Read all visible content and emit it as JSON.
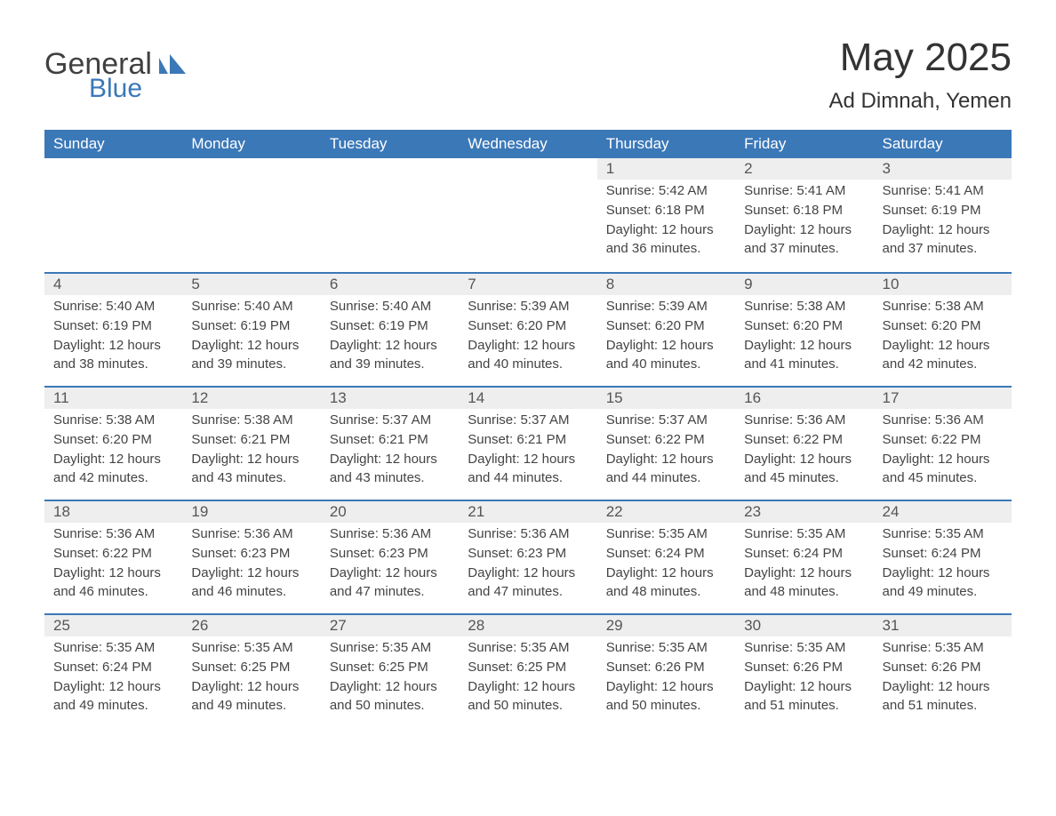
{
  "logo": {
    "general": "General",
    "blue": "Blue"
  },
  "title": "May 2025",
  "location": "Ad Dimnah, Yemen",
  "colors": {
    "header_bg": "#3b78b8",
    "header_text": "#ffffff",
    "daynum_bg": "#eeeeee",
    "border_top": "#3b78b8",
    "body_text": "#444444",
    "title_text": "#333333",
    "logo_gray": "#404040",
    "logo_blue": "#3b78b8",
    "page_bg": "#ffffff"
  },
  "weekdays": [
    "Sunday",
    "Monday",
    "Tuesday",
    "Wednesday",
    "Thursday",
    "Friday",
    "Saturday"
  ],
  "weeks": [
    [
      null,
      null,
      null,
      null,
      {
        "d": "1",
        "sunrise": "5:42 AM",
        "sunset": "6:18 PM",
        "daylight": "12 hours and 36 minutes."
      },
      {
        "d": "2",
        "sunrise": "5:41 AM",
        "sunset": "6:18 PM",
        "daylight": "12 hours and 37 minutes."
      },
      {
        "d": "3",
        "sunrise": "5:41 AM",
        "sunset": "6:19 PM",
        "daylight": "12 hours and 37 minutes."
      }
    ],
    [
      {
        "d": "4",
        "sunrise": "5:40 AM",
        "sunset": "6:19 PM",
        "daylight": "12 hours and 38 minutes."
      },
      {
        "d": "5",
        "sunrise": "5:40 AM",
        "sunset": "6:19 PM",
        "daylight": "12 hours and 39 minutes."
      },
      {
        "d": "6",
        "sunrise": "5:40 AM",
        "sunset": "6:19 PM",
        "daylight": "12 hours and 39 minutes."
      },
      {
        "d": "7",
        "sunrise": "5:39 AM",
        "sunset": "6:20 PM",
        "daylight": "12 hours and 40 minutes."
      },
      {
        "d": "8",
        "sunrise": "5:39 AM",
        "sunset": "6:20 PM",
        "daylight": "12 hours and 40 minutes."
      },
      {
        "d": "9",
        "sunrise": "5:38 AM",
        "sunset": "6:20 PM",
        "daylight": "12 hours and 41 minutes."
      },
      {
        "d": "10",
        "sunrise": "5:38 AM",
        "sunset": "6:20 PM",
        "daylight": "12 hours and 42 minutes."
      }
    ],
    [
      {
        "d": "11",
        "sunrise": "5:38 AM",
        "sunset": "6:20 PM",
        "daylight": "12 hours and 42 minutes."
      },
      {
        "d": "12",
        "sunrise": "5:38 AM",
        "sunset": "6:21 PM",
        "daylight": "12 hours and 43 minutes."
      },
      {
        "d": "13",
        "sunrise": "5:37 AM",
        "sunset": "6:21 PM",
        "daylight": "12 hours and 43 minutes."
      },
      {
        "d": "14",
        "sunrise": "5:37 AM",
        "sunset": "6:21 PM",
        "daylight": "12 hours and 44 minutes."
      },
      {
        "d": "15",
        "sunrise": "5:37 AM",
        "sunset": "6:22 PM",
        "daylight": "12 hours and 44 minutes."
      },
      {
        "d": "16",
        "sunrise": "5:36 AM",
        "sunset": "6:22 PM",
        "daylight": "12 hours and 45 minutes."
      },
      {
        "d": "17",
        "sunrise": "5:36 AM",
        "sunset": "6:22 PM",
        "daylight": "12 hours and 45 minutes."
      }
    ],
    [
      {
        "d": "18",
        "sunrise": "5:36 AM",
        "sunset": "6:22 PM",
        "daylight": "12 hours and 46 minutes."
      },
      {
        "d": "19",
        "sunrise": "5:36 AM",
        "sunset": "6:23 PM",
        "daylight": "12 hours and 46 minutes."
      },
      {
        "d": "20",
        "sunrise": "5:36 AM",
        "sunset": "6:23 PM",
        "daylight": "12 hours and 47 minutes."
      },
      {
        "d": "21",
        "sunrise": "5:36 AM",
        "sunset": "6:23 PM",
        "daylight": "12 hours and 47 minutes."
      },
      {
        "d": "22",
        "sunrise": "5:35 AM",
        "sunset": "6:24 PM",
        "daylight": "12 hours and 48 minutes."
      },
      {
        "d": "23",
        "sunrise": "5:35 AM",
        "sunset": "6:24 PM",
        "daylight": "12 hours and 48 minutes."
      },
      {
        "d": "24",
        "sunrise": "5:35 AM",
        "sunset": "6:24 PM",
        "daylight": "12 hours and 49 minutes."
      }
    ],
    [
      {
        "d": "25",
        "sunrise": "5:35 AM",
        "sunset": "6:24 PM",
        "daylight": "12 hours and 49 minutes."
      },
      {
        "d": "26",
        "sunrise": "5:35 AM",
        "sunset": "6:25 PM",
        "daylight": "12 hours and 49 minutes."
      },
      {
        "d": "27",
        "sunrise": "5:35 AM",
        "sunset": "6:25 PM",
        "daylight": "12 hours and 50 minutes."
      },
      {
        "d": "28",
        "sunrise": "5:35 AM",
        "sunset": "6:25 PM",
        "daylight": "12 hours and 50 minutes."
      },
      {
        "d": "29",
        "sunrise": "5:35 AM",
        "sunset": "6:26 PM",
        "daylight": "12 hours and 50 minutes."
      },
      {
        "d": "30",
        "sunrise": "5:35 AM",
        "sunset": "6:26 PM",
        "daylight": "12 hours and 51 minutes."
      },
      {
        "d": "31",
        "sunrise": "5:35 AM",
        "sunset": "6:26 PM",
        "daylight": "12 hours and 51 minutes."
      }
    ]
  ],
  "labels": {
    "sunrise": "Sunrise: ",
    "sunset": "Sunset: ",
    "daylight": "Daylight: "
  }
}
